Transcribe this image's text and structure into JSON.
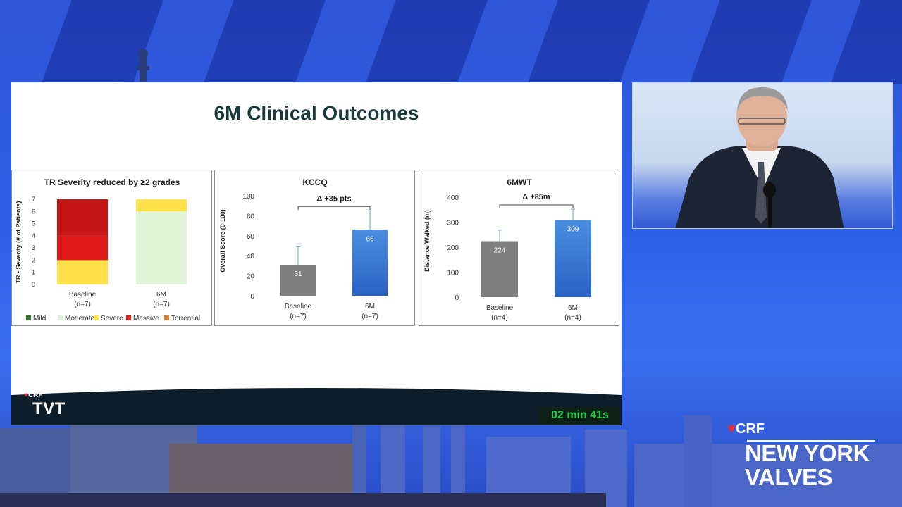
{
  "slide": {
    "title": "6M Clinical Outcomes",
    "timer": "02 min 41s",
    "logo_crf": "CRF",
    "logo_tvt": "TVT"
  },
  "brand": {
    "crf": "CRF",
    "line1": "NEW YORK",
    "line2": "VALVES"
  },
  "colors": {
    "mild": "#2e6b2e",
    "moderate": "#dff3d6",
    "severe": "#ffe14a",
    "massive": "#e01a1a",
    "massive_dark": "#c41616",
    "torrential": "#e07b2a",
    "baseline_bar": "#7f7f7f",
    "sixm_bar": "#3a7bd5"
  },
  "chart_data": [
    {
      "type": "bar",
      "stacked": true,
      "title": "TR Severity reduced by ≥2 grades",
      "ylabel": "TR - Severity (# of Patients)",
      "ylim": [
        0,
        7
      ],
      "yticks": [
        "0",
        "1",
        "2",
        "3",
        "4",
        "5",
        "6",
        "7"
      ],
      "categories": [
        "Baseline",
        "6M"
      ],
      "category_sublabels": [
        "(n=7)",
        "(n=7)"
      ],
      "series": [
        {
          "name": "Mild",
          "values": [
            0,
            0
          ]
        },
        {
          "name": "Moderate",
          "values": [
            0,
            6
          ]
        },
        {
          "name": "Severe",
          "values": [
            2,
            1
          ]
        },
        {
          "name": "Massive",
          "values": [
            5,
            0
          ]
        },
        {
          "name": "Torrential",
          "values": [
            0,
            0
          ]
        }
      ],
      "legend_position": "bottom"
    },
    {
      "type": "bar",
      "title": "KCCQ",
      "annotation": "Δ +35 pts",
      "ylabel": "Overall Score (0-100)",
      "ylim": [
        0,
        100
      ],
      "yticks": [
        "0",
        "20",
        "40",
        "60",
        "80",
        "100"
      ],
      "categories": [
        "Baseline",
        "6M"
      ],
      "category_sublabels": [
        "(n=7)",
        "(n=7)"
      ],
      "values": [
        31,
        66
      ],
      "error_upper": [
        49,
        85
      ],
      "data_labels": [
        "31",
        "66"
      ]
    },
    {
      "type": "bar",
      "title": "6MWT",
      "annotation": "Δ +85m",
      "ylabel": "Distance Walked (m)",
      "ylim": [
        0,
        400
      ],
      "yticks": [
        "0",
        "100",
        "200",
        "300",
        "400"
      ],
      "categories": [
        "Baseline",
        "6M"
      ],
      "category_sublabels": [
        "(n=4)",
        "(n=4)"
      ],
      "values": [
        224,
        309
      ],
      "error_upper": [
        268,
        352
      ],
      "data_labels": [
        "224",
        "309"
      ]
    }
  ]
}
